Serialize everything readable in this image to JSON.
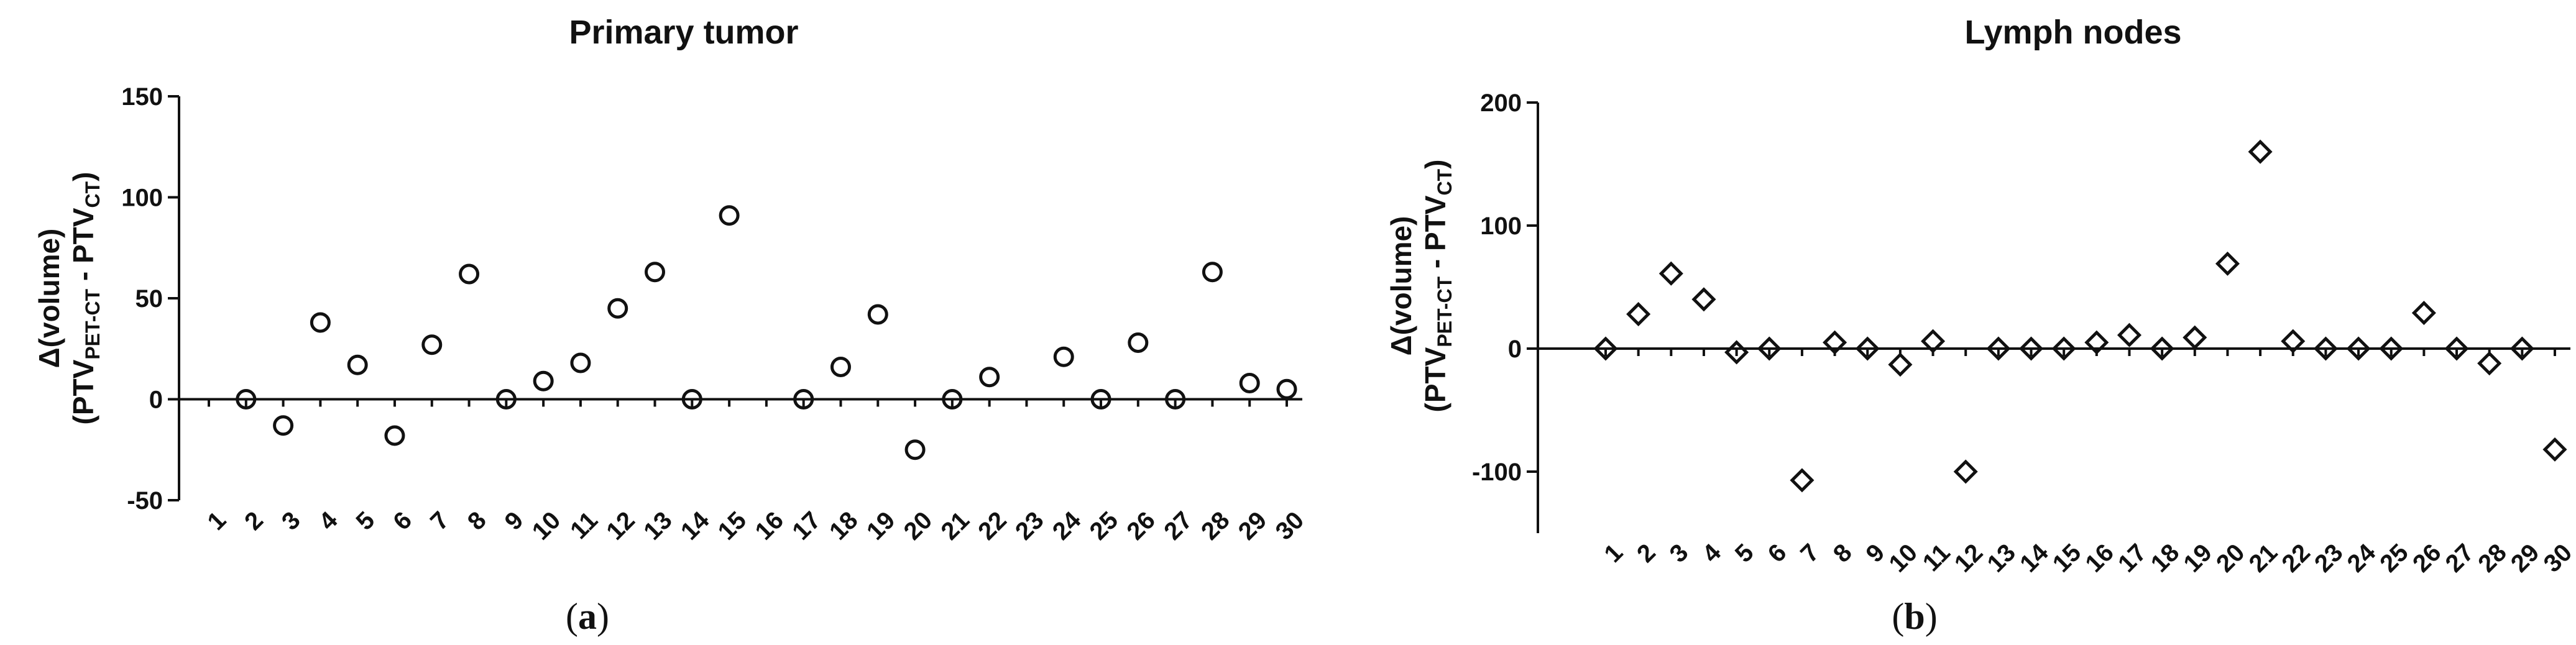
{
  "chart_data": [
    {
      "type": "scatter",
      "title": "Primary tumor",
      "ylabel_line1": "Δ(volume)",
      "ylabel_line2": {
        "prefix": "(PTV",
        "sub1": "PET-CT",
        "middle": " - PTV",
        "sub2": "CT",
        "suffix": ")"
      },
      "xlabel": "",
      "ylim": [
        -50,
        150
      ],
      "yticks": [
        -50,
        0,
        50,
        100,
        150
      ],
      "marker": "circle",
      "x": [
        1,
        2,
        3,
        4,
        5,
        6,
        7,
        8,
        9,
        10,
        11,
        12,
        13,
        14,
        15,
        16,
        17,
        18,
        19,
        20,
        21,
        22,
        23,
        24,
        25,
        26,
        27,
        28,
        29,
        30
      ],
      "xtick_labels": [
        "1",
        "2",
        "3",
        "4",
        "5",
        "6",
        "7",
        "8",
        "9",
        "10",
        "11",
        "12",
        "13",
        "14",
        "15",
        "16",
        "17",
        "18",
        "19",
        "20",
        "21",
        "22",
        "23",
        "24",
        "25",
        "26",
        "27",
        "28",
        "29",
        "30"
      ],
      "points": [
        [
          2,
          0
        ],
        [
          3,
          -13
        ],
        [
          4,
          38
        ],
        [
          5,
          17
        ],
        [
          6,
          -18
        ],
        [
          7,
          27
        ],
        [
          8,
          62
        ],
        [
          9,
          0
        ],
        [
          10,
          9
        ],
        [
          11,
          18
        ],
        [
          12,
          45
        ],
        [
          13,
          63
        ],
        [
          14,
          0
        ],
        [
          15,
          91
        ],
        [
          17,
          0
        ],
        [
          18,
          16
        ],
        [
          19,
          42
        ],
        [
          20,
          -25
        ],
        [
          21,
          0
        ],
        [
          22,
          11
        ],
        [
          24,
          21
        ],
        [
          25,
          0
        ],
        [
          26,
          28
        ],
        [
          27,
          0
        ],
        [
          28,
          63
        ],
        [
          29,
          8
        ],
        [
          30,
          5
        ]
      ],
      "caption": {
        "open": "(",
        "letter": "a",
        "close": ")"
      }
    },
    {
      "type": "scatter",
      "title": "Lymph nodes",
      "ylabel_line1": "Δ(volume)",
      "ylabel_line2": {
        "prefix": "(PTV",
        "sub1": "PET-CT",
        "middle": " - PTV",
        "sub2": "CT",
        "suffix": ")"
      },
      "xlabel": "",
      "ylim": [
        -150,
        200
      ],
      "yticks": [
        -100,
        0,
        100,
        200
      ],
      "marker": "diamond",
      "x": [
        1,
        2,
        3,
        4,
        5,
        6,
        7,
        8,
        9,
        10,
        11,
        12,
        13,
        14,
        15,
        16,
        17,
        18,
        19,
        20,
        21,
        22,
        23,
        24,
        25,
        26,
        27,
        28,
        29,
        30
      ],
      "xtick_labels": [
        "1",
        "2",
        "3",
        "4",
        "5",
        "6",
        "7",
        "8",
        "9",
        "10",
        "11",
        "12",
        "13",
        "14",
        "15",
        "16",
        "17",
        "18",
        "19",
        "20",
        "21",
        "22",
        "23",
        "24",
        "25",
        "26",
        "27",
        "28",
        "29",
        "30"
      ],
      "points": [
        [
          1,
          0
        ],
        [
          2,
          28
        ],
        [
          3,
          61
        ],
        [
          4,
          40
        ],
        [
          5,
          -3
        ],
        [
          6,
          0
        ],
        [
          7,
          -107
        ],
        [
          8,
          5
        ],
        [
          9,
          0
        ],
        [
          10,
          -13
        ],
        [
          11,
          6
        ],
        [
          12,
          -100
        ],
        [
          13,
          0
        ],
        [
          14,
          0
        ],
        [
          15,
          0
        ],
        [
          16,
          5
        ],
        [
          17,
          11
        ],
        [
          18,
          0
        ],
        [
          19,
          9
        ],
        [
          20,
          69
        ],
        [
          21,
          160
        ],
        [
          22,
          6
        ],
        [
          23,
          0
        ],
        [
          24,
          0
        ],
        [
          25,
          0
        ],
        [
          26,
          29
        ],
        [
          27,
          0
        ],
        [
          28,
          -12
        ],
        [
          29,
          0
        ],
        [
          30,
          -82
        ]
      ],
      "caption": {
        "open": "(",
        "letter": "b",
        "close": ")"
      }
    }
  ]
}
